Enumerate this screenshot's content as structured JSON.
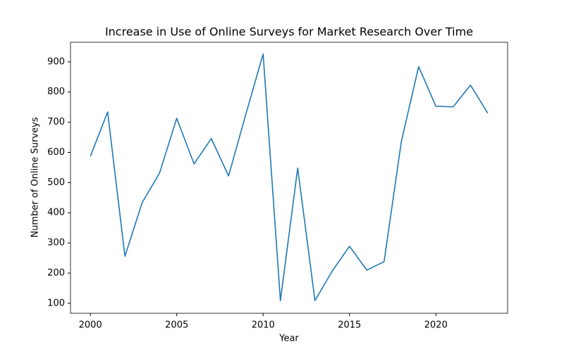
{
  "chart_data": {
    "type": "line",
    "title": "Increase in Use of Online Surveys for Market Research Over Time",
    "x_label": "Year",
    "y_label": "Number of Online Surveys",
    "x": [
      2000,
      2001,
      2002,
      2003,
      2004,
      2005,
      2006,
      2007,
      2008,
      2009,
      2010,
      2011,
      2012,
      2013,
      2014,
      2015,
      2016,
      2017,
      2018,
      2019,
      2020,
      2021,
      2022,
      2023
    ],
    "series": [
      {
        "name": "Number of Online Surveys",
        "color": "#1f77b4",
        "values": [
          587,
          734,
          256,
          434,
          531,
          713,
          562,
          646,
          522,
          727,
          926,
          109,
          548,
          109,
          207,
          289,
          210,
          238,
          636,
          884,
          753,
          751,
          823,
          730
        ]
      }
    ],
    "xlim": [
      1998.85,
      2024.15
    ],
    "xticks": [
      2000,
      2005,
      2010,
      2015,
      2020
    ],
    "ylim": [
      67,
      965
    ],
    "yticks": [
      100,
      200,
      300,
      400,
      500,
      600,
      700,
      800,
      900
    ],
    "grid": false
  }
}
